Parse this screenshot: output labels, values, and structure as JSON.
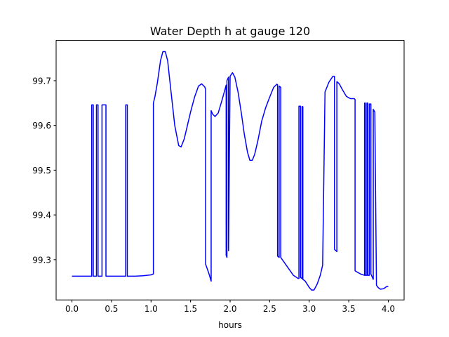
{
  "chart_data": {
    "type": "line",
    "title": "Water Depth h at gauge 120",
    "xlabel": "hours",
    "ylabel": "",
    "xlim": [
      -0.2,
      4.2
    ],
    "ylim": [
      99.21,
      99.79
    ],
    "xticks": [
      0.0,
      0.5,
      1.0,
      1.5,
      2.0,
      2.5,
      3.0,
      3.5,
      4.0
    ],
    "xtick_labels": [
      "0.0",
      "0.5",
      "1.0",
      "1.5",
      "2.0",
      "2.5",
      "3.0",
      "3.5",
      "4.0"
    ],
    "yticks": [
      99.3,
      99.4,
      99.5,
      99.6,
      99.7
    ],
    "ytick_labels": [
      "99.3",
      "99.4",
      "99.5",
      "99.6",
      "99.7"
    ],
    "grid": false,
    "color": "#0000ff",
    "x": [
      0.0,
      0.25,
      0.25,
      0.27,
      0.27,
      0.31,
      0.31,
      0.33,
      0.33,
      0.38,
      0.38,
      0.43,
      0.43,
      0.68,
      0.68,
      0.7,
      0.7,
      0.8,
      0.9,
      1.0,
      1.03,
      1.03,
      1.05,
      1.08,
      1.12,
      1.15,
      1.18,
      1.21,
      1.25,
      1.3,
      1.35,
      1.38,
      1.42,
      1.46,
      1.5,
      1.55,
      1.6,
      1.64,
      1.68,
      1.69,
      1.69,
      1.73,
      1.76,
      1.76,
      1.78,
      1.81,
      1.85,
      1.9,
      1.95,
      1.95,
      1.96,
      1.96,
      1.98,
      1.98,
      2.0,
      2.03,
      2.06,
      2.1,
      2.14,
      2.18,
      2.22,
      2.25,
      2.28,
      2.31,
      2.35,
      2.4,
      2.45,
      2.5,
      2.55,
      2.59,
      2.6,
      2.6,
      2.62,
      2.62,
      2.64,
      2.64,
      2.7,
      2.8,
      2.86,
      2.87,
      2.87,
      2.89,
      2.89,
      2.91,
      2.91,
      2.92,
      2.92,
      2.95,
      3.0,
      3.03,
      3.06,
      3.1,
      3.14,
      3.16,
      3.17,
      3.2,
      3.25,
      3.3,
      3.32,
      3.32,
      3.35,
      3.35,
      3.38,
      3.42,
      3.47,
      3.52,
      3.57,
      3.58,
      3.58,
      3.65,
      3.7,
      3.7,
      3.71,
      3.71,
      3.73,
      3.73,
      3.74,
      3.74,
      3.76,
      3.76,
      3.78,
      3.78,
      3.81,
      3.81,
      3.83,
      3.83,
      3.85,
      3.85,
      3.87,
      3.9,
      3.94,
      3.98,
      4.0
    ],
    "y": [
      99.263,
      99.263,
      99.646,
      99.646,
      99.263,
      99.263,
      99.646,
      99.646,
      99.263,
      99.263,
      99.646,
      99.646,
      99.263,
      99.263,
      99.646,
      99.646,
      99.263,
      99.263,
      99.264,
      99.266,
      99.268,
      99.65,
      99.665,
      99.695,
      99.745,
      99.765,
      99.765,
      99.745,
      99.68,
      99.6,
      99.555,
      99.552,
      99.57,
      99.6,
      99.63,
      99.663,
      99.688,
      99.693,
      99.686,
      99.68,
      99.29,
      99.27,
      99.252,
      99.633,
      99.625,
      99.62,
      99.628,
      99.658,
      99.69,
      99.31,
      99.305,
      99.7,
      99.708,
      99.32,
      99.71,
      99.718,
      99.708,
      99.675,
      99.63,
      99.58,
      99.54,
      99.522,
      99.522,
      99.535,
      99.565,
      99.61,
      99.64,
      99.663,
      99.685,
      99.692,
      99.691,
      99.308,
      99.305,
      99.688,
      99.685,
      99.305,
      99.29,
      99.265,
      99.258,
      99.258,
      99.643,
      99.643,
      99.26,
      99.258,
      99.642,
      99.642,
      99.256,
      99.252,
      99.238,
      99.232,
      99.232,
      99.245,
      99.265,
      99.28,
      99.288,
      99.675,
      99.697,
      99.71,
      99.71,
      99.323,
      99.318,
      99.698,
      99.693,
      99.68,
      99.665,
      99.66,
      99.66,
      99.658,
      99.275,
      99.268,
      99.265,
      99.65,
      99.65,
      99.265,
      99.265,
      99.65,
      99.65,
      99.265,
      99.265,
      99.648,
      99.648,
      99.268,
      99.256,
      99.636,
      99.63,
      99.628,
      99.25,
      99.243,
      99.238,
      99.234,
      99.235,
      99.24,
      99.24
    ]
  }
}
